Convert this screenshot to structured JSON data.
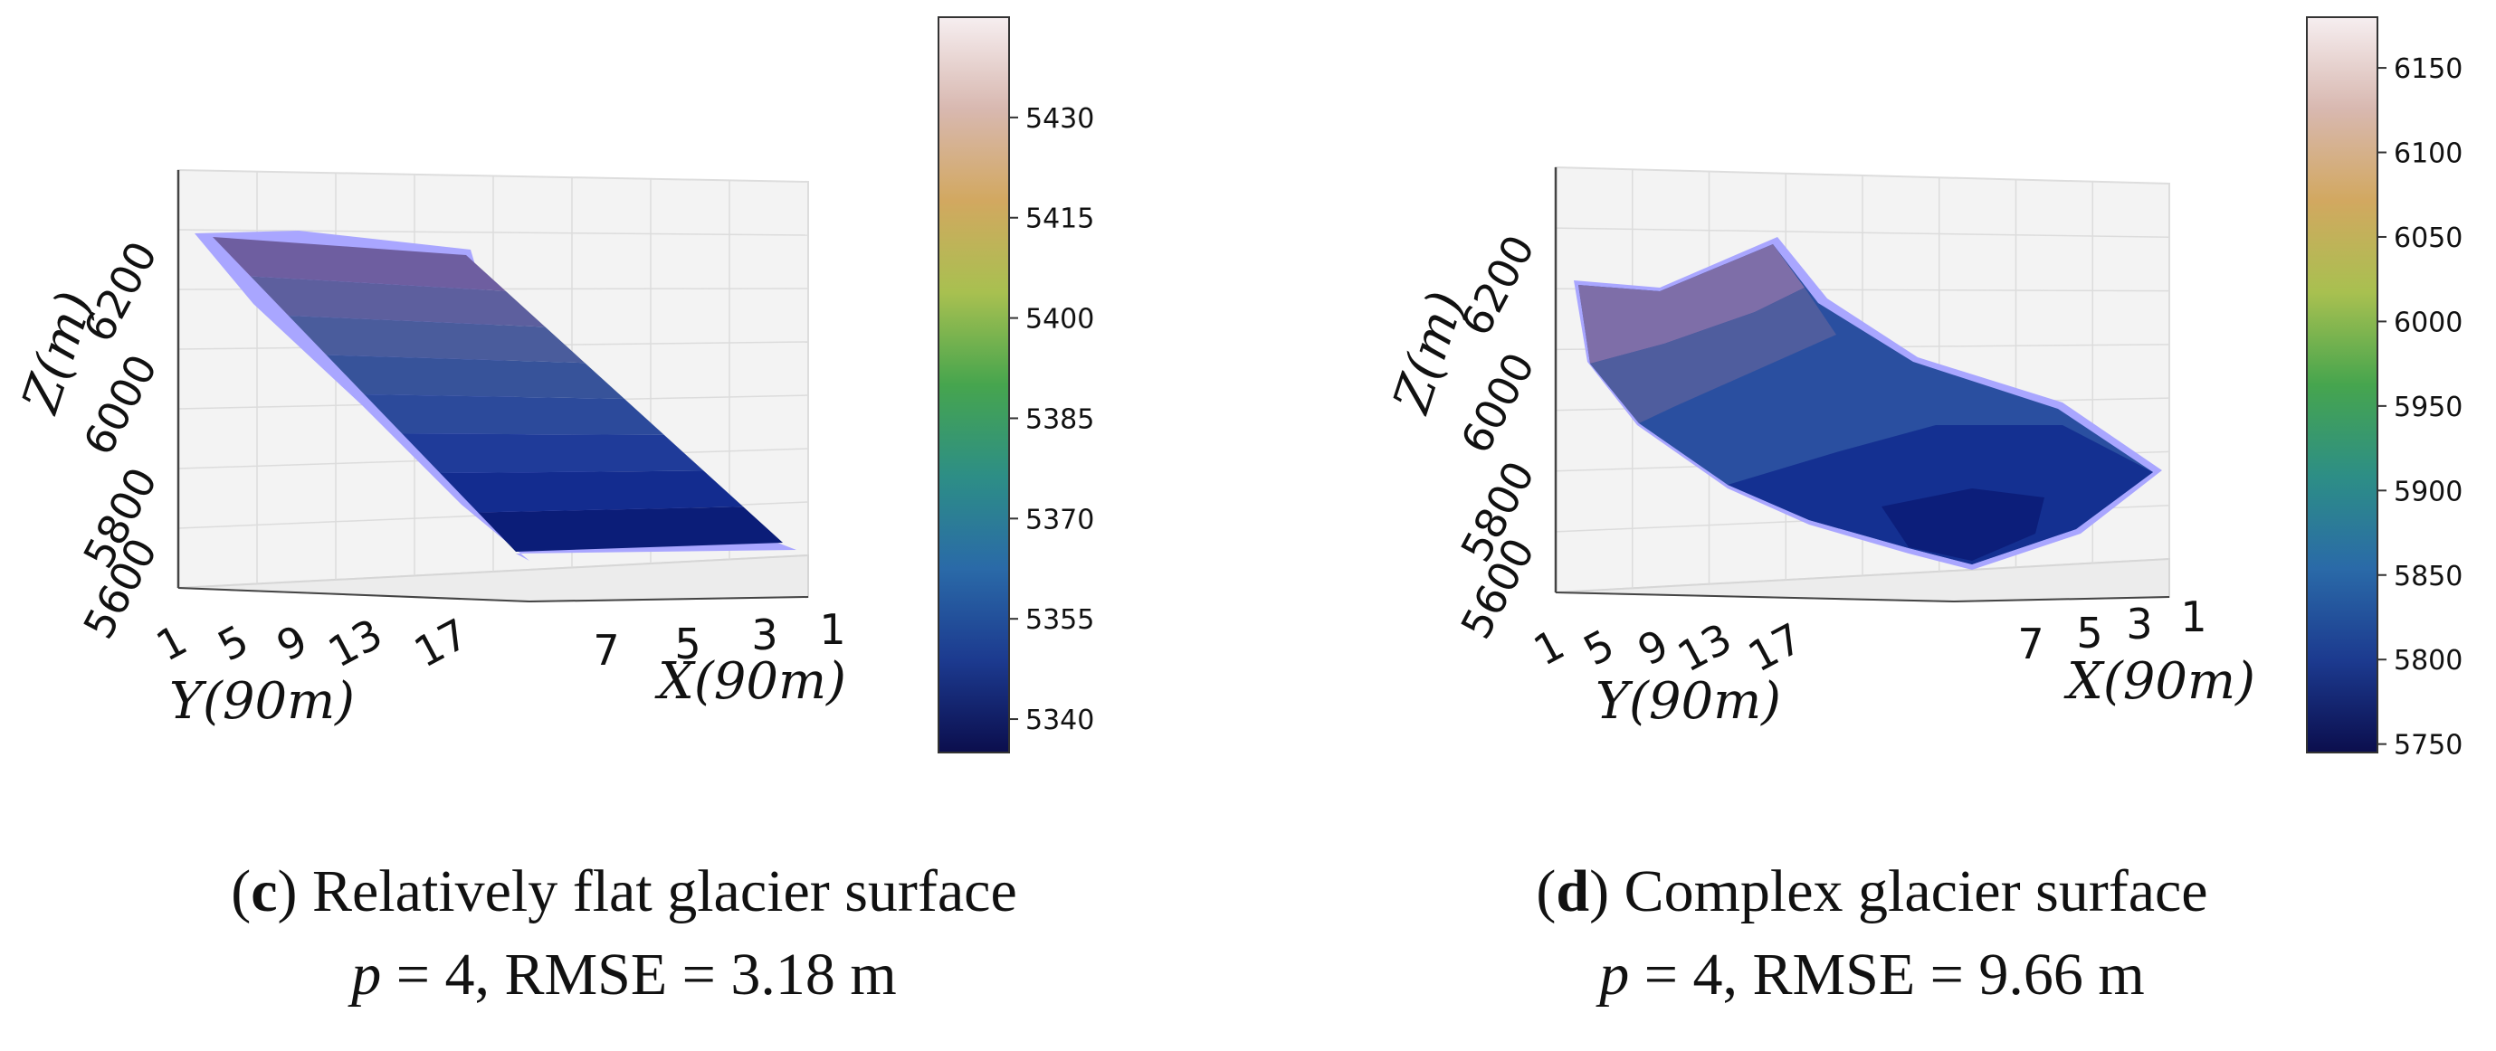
{
  "chart_data": [
    {
      "type": "surface3d",
      "panel": "c",
      "zlabel": "Z(m)",
      "xlabel": "X(90m)",
      "ylabel": "Y(90m)",
      "z_ticks": [
        "5600",
        "5800",
        "6000",
        "6200"
      ],
      "y_ticks": [
        "1",
        "5",
        "9",
        "13",
        "17"
      ],
      "x_ticks": [
        "7",
        "5",
        "3",
        "1"
      ],
      "colorbar": {
        "min": 5335,
        "max": 5445,
        "ticks": [
          "5340",
          "5355",
          "5370",
          "5385",
          "5400",
          "5415",
          "5430"
        ]
      },
      "surface_shape": "smooth inclined plane descending from high rear-left edge to low front-right corner",
      "caption": {
        "letter": "c",
        "title": ") Relatively flat glacier surface",
        "p_label": "p",
        "params": " = 4, RMSE = 3.18 m"
      }
    },
    {
      "type": "surface3d",
      "panel": "d",
      "zlabel": "Z(m)",
      "xlabel": "X(90m)",
      "ylabel": "Y(90m)",
      "z_ticks": [
        "5600",
        "5800",
        "6000",
        "6200"
      ],
      "y_ticks": [
        "1",
        "5",
        "9",
        "13",
        "17"
      ],
      "x_ticks": [
        "7",
        "5",
        "3",
        "1"
      ],
      "colorbar": {
        "min": 5745,
        "max": 6180,
        "ticks": [
          "5750",
          "5800",
          "5850",
          "5900",
          "5950",
          "6000",
          "6050",
          "6100",
          "6150"
        ]
      },
      "surface_shape": "undulating surface with high ridge at rear and a trough toward the front",
      "caption": {
        "letter": "d",
        "title": ") Complex glacier surface",
        "p_label": "p",
        "params": " = 4, RMSE = 9.66 m"
      }
    }
  ],
  "colors": {
    "cmap": [
      "#0b0e4d",
      "#1c3a8f",
      "#2a6aa8",
      "#2d8e86",
      "#46a54e",
      "#a8c050",
      "#d2a860",
      "#d8b8b0",
      "#f6eef0"
    ],
    "surface_edge": "#a9a6ff"
  }
}
